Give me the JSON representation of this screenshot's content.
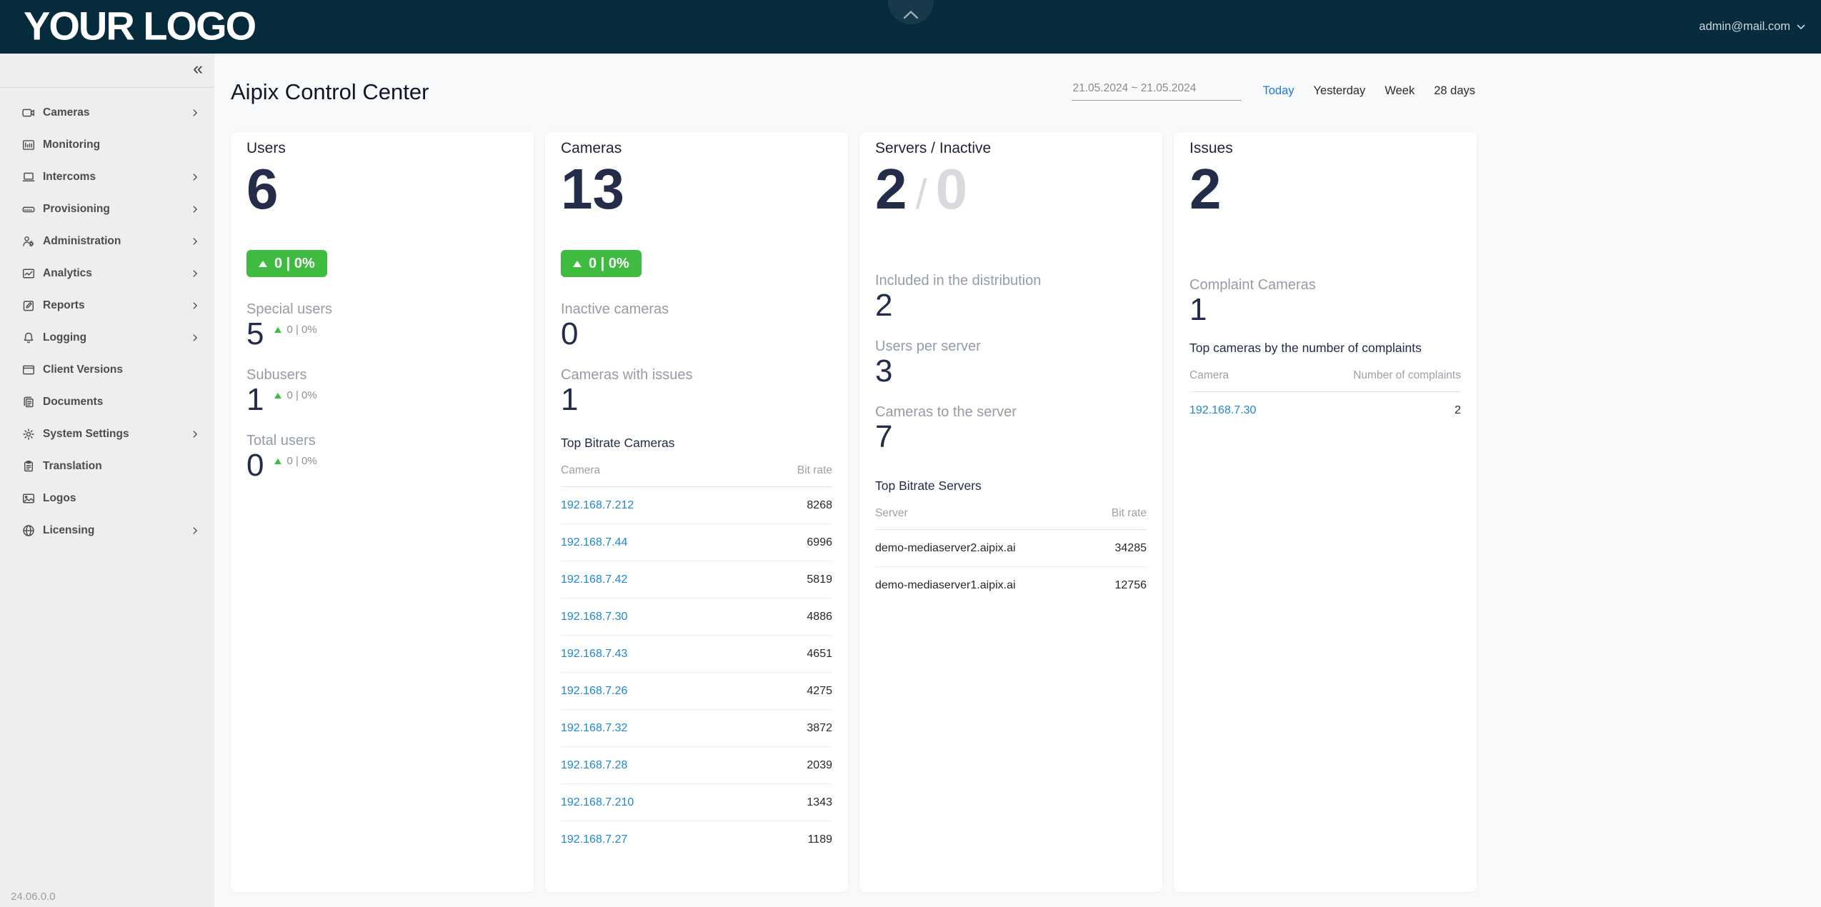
{
  "header": {
    "logo": "YOUR LOGO",
    "user_email": "admin@mail.com",
    "collapse_panel_icon": "chevron-up-icon"
  },
  "sidebar": {
    "collapse_glyph": "«",
    "version": "24.06.0.0",
    "items": [
      {
        "label": "Cameras",
        "icon": "camera-icon",
        "expandable": true
      },
      {
        "label": "Monitoring",
        "icon": "monitoring-icon",
        "expandable": false
      },
      {
        "label": "Intercoms",
        "icon": "intercom-icon",
        "expandable": true
      },
      {
        "label": "Provisioning",
        "icon": "provisioning-icon",
        "expandable": true
      },
      {
        "label": "Administration",
        "icon": "administration-icon",
        "expandable": true
      },
      {
        "label": "Analytics",
        "icon": "analytics-icon",
        "expandable": true
      },
      {
        "label": "Reports",
        "icon": "reports-icon",
        "expandable": true
      },
      {
        "label": "Logging",
        "icon": "bell-icon",
        "expandable": true
      },
      {
        "label": "Client Versions",
        "icon": "window-icon",
        "expandable": false
      },
      {
        "label": "Documents",
        "icon": "documents-icon",
        "expandable": false
      },
      {
        "label": "System Settings",
        "icon": "gear-icon",
        "expandable": true
      },
      {
        "label": "Translation",
        "icon": "clipboard-icon",
        "expandable": false
      },
      {
        "label": "Logos",
        "icon": "image-icon",
        "expandable": false
      },
      {
        "label": "Licensing",
        "icon": "globe-icon",
        "expandable": true
      }
    ]
  },
  "page": {
    "title": "Aipix Control Center"
  },
  "controls": {
    "date_range": "21.05.2024 ~ 21.05.2024",
    "range_tabs": [
      {
        "label": "Today",
        "active": true
      },
      {
        "label": "Yesterday",
        "active": false
      },
      {
        "label": "Week",
        "active": false
      },
      {
        "label": "28 days",
        "active": false
      }
    ]
  },
  "cards": {
    "users": {
      "title": "Users",
      "value": "6",
      "badge": {
        "direction": "up",
        "text": "0 | 0%"
      },
      "stats": [
        {
          "label": "Special users",
          "value": "5",
          "delta": "0 | 0%"
        },
        {
          "label": "Subusers",
          "value": "1",
          "delta": "0 | 0%"
        },
        {
          "label": "Total users",
          "value": "0",
          "delta": "0 | 0%"
        }
      ]
    },
    "cameras": {
      "title": "Cameras",
      "value": "13",
      "badge": {
        "direction": "up",
        "text": "0 | 0%"
      },
      "stats": [
        {
          "label": "Inactive cameras",
          "value": "0"
        },
        {
          "label": "Cameras with issues",
          "value": "1"
        }
      ],
      "table": {
        "heading": "Top Bitrate Cameras",
        "col1": "Camera",
        "col2": "Bit rate",
        "rows": [
          {
            "name": "192.168.7.212",
            "value": "8268"
          },
          {
            "name": "192.168.7.44",
            "value": "6996"
          },
          {
            "name": "192.168.7.42",
            "value": "5819"
          },
          {
            "name": "192.168.7.30",
            "value": "4886"
          },
          {
            "name": "192.168.7.43",
            "value": "4651"
          },
          {
            "name": "192.168.7.26",
            "value": "4275"
          },
          {
            "name": "192.168.7.32",
            "value": "3872"
          },
          {
            "name": "192.168.7.28",
            "value": "2039"
          },
          {
            "name": "192.168.7.210",
            "value": "1343"
          },
          {
            "name": "192.168.7.27",
            "value": "1189"
          }
        ]
      }
    },
    "servers": {
      "title": "Servers / Inactive",
      "value": "2",
      "separator": "/",
      "value_inactive": "0",
      "stats": [
        {
          "label": "Included in the distribution",
          "value": "2"
        },
        {
          "label": "Users per server",
          "value": "3"
        },
        {
          "label": "Cameras to the server",
          "value": "7"
        }
      ],
      "table": {
        "heading": "Top Bitrate Servers",
        "col1": "Server",
        "col2": "Bit rate",
        "rows": [
          {
            "name": "demo-mediaserver2.aipix.ai",
            "value": "34285"
          },
          {
            "name": "demo-mediaserver1.aipix.ai",
            "value": "12756"
          }
        ]
      }
    },
    "issues": {
      "title": "Issues",
      "value": "2",
      "stats": [
        {
          "label": "Complaint Cameras",
          "value": "1"
        }
      ],
      "table": {
        "heading": "Top cameras by the number of complaints",
        "col1": "Camera",
        "col2": "Number of complaints",
        "rows": [
          {
            "name": "192.168.7.30",
            "value": "2"
          }
        ]
      }
    }
  },
  "colors": {
    "header_bg": "#062b3d",
    "positive_green": "#3fbc3f",
    "link_blue": "#1d87d2",
    "active_tab_blue": "#1d79e5",
    "dark_navy_text": "#232c48",
    "sidebar_bg": "#eeeeee",
    "main_bg": "#f8f9fa"
  }
}
